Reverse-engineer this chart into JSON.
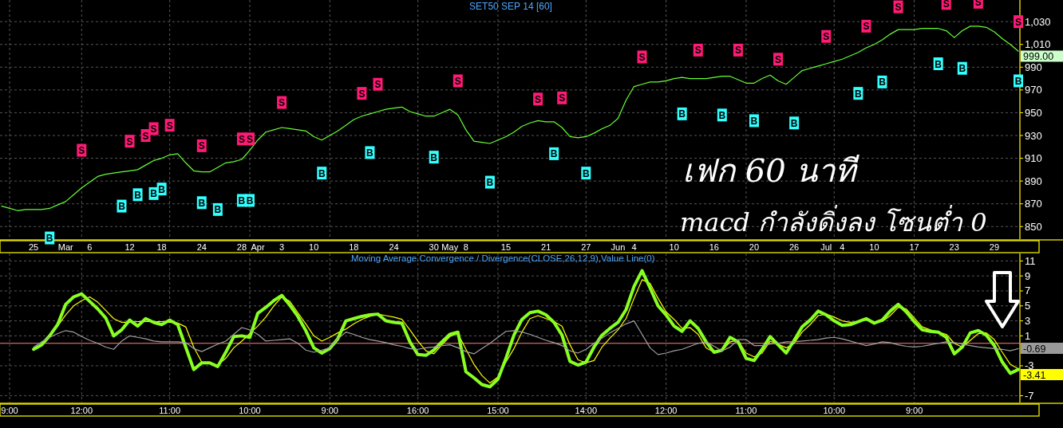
{
  "chart_data": [
    {
      "type": "line",
      "title": "SET50 SEP 14  [60]",
      "ylim": [
        839,
        1049
      ],
      "categories": [
        null,
        null,
        null,
        null,
        "25",
        null,
        null,
        null,
        "Mar",
        null,
        null,
        "6",
        null,
        null,
        null,
        null,
        "12",
        null,
        null,
        null,
        "18",
        null,
        null,
        null,
        null,
        "24",
        null,
        null,
        null,
        null,
        "28",
        null,
        "Apr",
        null,
        null,
        "3",
        null,
        null,
        null,
        "10",
        null,
        null,
        null,
        null,
        "18",
        null,
        null,
        null,
        null,
        "24",
        null,
        null,
        null,
        null,
        "30",
        null,
        "May",
        null,
        "8",
        null,
        null,
        null,
        null,
        "15",
        null,
        null,
        null,
        null,
        "21",
        null,
        null,
        null,
        null,
        "27",
        null,
        null,
        null,
        "Jun",
        null,
        "4",
        null,
        null,
        null,
        null,
        "10",
        null,
        null,
        null,
        null,
        "16",
        null,
        null,
        null,
        null,
        "20",
        null,
        null,
        null,
        null,
        "26",
        null,
        null,
        null,
        "Jul",
        null,
        "4",
        null,
        null,
        null,
        "10",
        null,
        null,
        null,
        null,
        "17",
        null,
        null,
        null,
        null,
        "23",
        null,
        null,
        null,
        null,
        "29",
        null,
        null,
        null
      ],
      "yticks": [
        850,
        870,
        890,
        910,
        930,
        950,
        970,
        990,
        {
          "value": 1010,
          "label": "1,010"
        },
        {
          "value": 1030,
          "label": "1,030"
        }
      ],
      "grid": true,
      "series": [
        {
          "color": "#66ff33",
          "values": [
            868,
            866,
            864,
            865,
            865,
            865,
            866,
            869,
            872,
            878,
            884,
            889,
            894,
            896,
            897,
            898,
            899,
            900,
            904,
            908,
            910,
            913,
            914,
            906,
            899,
            898,
            898,
            902,
            906,
            907,
            909,
            917,
            926,
            933,
            935,
            937,
            936,
            935,
            934,
            929,
            926,
            930,
            934,
            939,
            944,
            947,
            949,
            951,
            953,
            954,
            955,
            951,
            949,
            947,
            947,
            950,
            953,
            948,
            935,
            925,
            924,
            923,
            926,
            929,
            933,
            938,
            941,
            943,
            942,
            942,
            937,
            929,
            928,
            929,
            932,
            936,
            939,
            945,
            961,
            973,
            975,
            977,
            977,
            978,
            980,
            981,
            980,
            980,
            980,
            981,
            982,
            982,
            979,
            976,
            976,
            980,
            983,
            978,
            975,
            981,
            987,
            989,
            991,
            993,
            995,
            997,
            1000,
            1003,
            1007,
            1010,
            1014,
            1019,
            1023,
            1023,
            1023,
            1024,
            1024,
            1024,
            1022,
            1016,
            1022,
            1026,
            1026,
            1025,
            1021,
            1015,
            1010,
            1004
          ]
        },
        {
          "type": "scatter",
          "marker": "square",
          "color": "#ff1a75",
          "values": [
            null,
            null,
            null,
            null,
            null,
            null,
            null,
            null,
            null,
            null,
            917,
            null,
            null,
            null,
            null,
            null,
            925,
            null,
            930,
            936,
            null,
            939,
            null,
            null,
            null,
            921,
            null,
            null,
            null,
            null,
            927,
            927,
            null,
            null,
            null,
            959,
            null,
            null,
            null,
            null,
            null,
            null,
            null,
            null,
            null,
            967,
            null,
            975,
            null,
            null,
            null,
            null,
            null,
            null,
            null,
            null,
            null,
            978,
            null,
            null,
            null,
            null,
            null,
            null,
            null,
            null,
            null,
            962,
            null,
            null,
            963,
            null,
            null,
            null,
            null,
            null,
            null,
            null,
            null,
            null,
            999,
            null,
            null,
            null,
            null,
            null,
            null,
            1005,
            null,
            null,
            null,
            null,
            1005,
            null,
            null,
            null,
            null,
            997,
            null,
            null,
            null,
            null,
            null,
            1017,
            null,
            null,
            null,
            null,
            1026,
            null,
            null,
            null,
            1043,
            null,
            null,
            null,
            null,
            null,
            1046,
            null,
            null,
            null,
            1047,
            null,
            null,
            null,
            null,
            1030
          ],
          "value_labels": [
            null,
            null,
            null,
            null,
            null,
            null,
            null,
            null,
            null,
            null,
            "S",
            null,
            null,
            null,
            null,
            null,
            "S",
            null,
            "S",
            "S",
            null,
            "S",
            null,
            null,
            null,
            "S",
            null,
            null,
            null,
            null,
            "S",
            "S",
            null,
            null,
            null,
            "S",
            null,
            null,
            null,
            null,
            null,
            null,
            null,
            null,
            null,
            "S",
            null,
            "S",
            null,
            null,
            null,
            null,
            null,
            null,
            null,
            null,
            null,
            "S",
            null,
            null,
            null,
            null,
            null,
            null,
            null,
            null,
            null,
            "S",
            null,
            null,
            "S",
            null,
            null,
            null,
            null,
            null,
            null,
            null,
            null,
            null,
            "S",
            null,
            null,
            null,
            null,
            null,
            null,
            "S",
            null,
            null,
            null,
            null,
            "S",
            null,
            null,
            null,
            null,
            "S",
            null,
            null,
            null,
            null,
            null,
            "S",
            null,
            null,
            null,
            null,
            "S",
            null,
            null,
            null,
            "S",
            null,
            null,
            null,
            null,
            null,
            "S",
            null,
            null,
            null,
            "S",
            null,
            null,
            null,
            null,
            "S"
          ]
        },
        {
          "type": "scatter",
          "marker": "square",
          "color": "#33ffff",
          "values": [
            null,
            null,
            null,
            null,
            null,
            null,
            840,
            null,
            null,
            null,
            null,
            null,
            null,
            null,
            null,
            868,
            null,
            878,
            null,
            879,
            883,
            null,
            null,
            null,
            null,
            871,
            null,
            865,
            null,
            null,
            873,
            873,
            null,
            null,
            null,
            null,
            null,
            null,
            null,
            null,
            897,
            null,
            null,
            null,
            null,
            null,
            915,
            null,
            null,
            null,
            null,
            null,
            null,
            null,
            911,
            null,
            null,
            null,
            null,
            null,
            null,
            889,
            null,
            null,
            null,
            null,
            null,
            null,
            null,
            914,
            null,
            null,
            null,
            897,
            null,
            null,
            null,
            null,
            null,
            null,
            null,
            null,
            null,
            null,
            null,
            949,
            null,
            null,
            null,
            null,
            948,
            null,
            null,
            null,
            943,
            null,
            null,
            null,
            null,
            941,
            null,
            null,
            null,
            null,
            null,
            null,
            null,
            967,
            null,
            null,
            977,
            null,
            null,
            null,
            null,
            null,
            null,
            993,
            null,
            null,
            989,
            null,
            null,
            null,
            null,
            null,
            null,
            978
          ],
          "value_labels": [
            null,
            null,
            null,
            null,
            null,
            null,
            "B",
            null,
            null,
            null,
            null,
            null,
            null,
            null,
            null,
            "B",
            null,
            "B",
            null,
            "B",
            "B",
            null,
            null,
            null,
            null,
            "B",
            null,
            "B",
            null,
            null,
            "B",
            "B",
            null,
            null,
            null,
            null,
            null,
            null,
            null,
            null,
            "B",
            null,
            null,
            null,
            null,
            null,
            "B",
            null,
            null,
            null,
            null,
            null,
            null,
            null,
            "B",
            null,
            null,
            null,
            null,
            null,
            null,
            "B",
            null,
            null,
            null,
            null,
            null,
            null,
            null,
            "B",
            null,
            null,
            null,
            "B",
            null,
            null,
            null,
            null,
            null,
            null,
            null,
            null,
            null,
            null,
            null,
            "B",
            null,
            null,
            null,
            null,
            "B",
            null,
            null,
            null,
            "B",
            null,
            null,
            null,
            null,
            "B",
            null,
            null,
            null,
            null,
            null,
            null,
            null,
            "B",
            null,
            null,
            "B",
            null,
            null,
            null,
            null,
            null,
            null,
            "B",
            null,
            null,
            "B",
            null,
            null,
            null,
            null,
            null,
            null,
            "B"
          ]
        }
      ],
      "annotations": [
        "เฟก 60 นาที",
        "macd กำลังดิ่งลง โซนต่ำ 0",
        "999.00"
      ]
    },
    {
      "type": "line",
      "title": "Moving Average Convergence / Divergence(CLOSE,26,12,9),Value Line(0)",
      "ylim": [
        -7.9,
        12
      ],
      "categories": [
        null,
        "9:00",
        null,
        null,
        null,
        null,
        null,
        null,
        null,
        null,
        "12:00",
        null,
        null,
        null,
        null,
        null,
        null,
        null,
        null,
        null,
        null,
        "11:00",
        null,
        null,
        null,
        null,
        null,
        null,
        null,
        null,
        null,
        "10:00",
        null,
        null,
        null,
        null,
        null,
        null,
        null,
        null,
        null,
        "9:00",
        null,
        null,
        null,
        null,
        null,
        null,
        null,
        null,
        null,
        null,
        "16:00",
        null,
        null,
        null,
        null,
        null,
        null,
        null,
        null,
        null,
        "15:00",
        null,
        null,
        null,
        null,
        null,
        null,
        null,
        null,
        null,
        null,
        "14:00",
        null,
        null,
        null,
        null,
        null,
        null,
        null,
        null,
        null,
        "12:00",
        null,
        null,
        null,
        null,
        null,
        null,
        null,
        null,
        null,
        "11:00",
        null,
        null,
        null,
        null,
        null,
        null,
        null,
        null,
        null,
        null,
        "10:00",
        null,
        null,
        null,
        null,
        null,
        null,
        null,
        null,
        null,
        "9:00",
        null,
        null,
        null,
        null,
        null,
        null,
        null,
        null,
        null,
        null,
        null,
        null,
        null
      ],
      "yticks": [
        -7,
        -3,
        1,
        3,
        5,
        7,
        9,
        11
      ],
      "grid": true,
      "ref_lines": [
        {
          "axis": "y",
          "value": 0,
          "color": "#ff8080"
        }
      ],
      "series": [
        {
          "color": "#a0a0a0",
          "values": [
            null,
            null,
            null,
            null,
            -0.5,
            0.2,
            0.8,
            1.3,
            1.7,
            1.5,
            0.9,
            0.4,
            0.0,
            -0.5,
            -0.8,
            0.3,
            1.0,
            0.8,
            0.6,
            0.3,
            0.2,
            0.2,
            0.2,
            0.1,
            -0.7,
            -1.1,
            -0.6,
            -0.1,
            0.3,
            1.2,
            2.1,
            1.8,
            1.2,
            0.3,
            0.4,
            0.5,
            0.6,
            0.0,
            -0.9,
            -1.2,
            -0.9,
            -0.6,
            0.6,
            1.5,
            1.2,
            0.8,
            0.5,
            0.3,
            0.1,
            -0.2,
            -0.4,
            -0.7,
            -0.8,
            -0.6,
            -0.5,
            -0.3,
            -0.2,
            -0.6,
            -1.1,
            -1.4,
            -0.7,
            0.0,
            0.8,
            1.6,
            1.7,
            1.5,
            1.2,
            0.8,
            0.4,
            0.1,
            -0.3,
            -1.0,
            -1.3,
            -0.8,
            0.0,
            0.7,
            1.4,
            2.0,
            2.6,
            3.0,
            1.2,
            -0.6,
            -1.5,
            -1.3,
            -1.0,
            -0.8,
            -0.4,
            0.0,
            0.2,
            -0.4,
            -1.0,
            -0.5,
            0.5,
            0.5,
            -0.3,
            -0.3,
            -0.1,
            0.0,
            0.2,
            0.2,
            0.3,
            0.4,
            0.5,
            0.7,
            0.8,
            0.6,
            0.3,
            0.0,
            -0.3,
            -0.1,
            0.2,
            0.1,
            -0.2,
            -0.4,
            -0.5,
            -0.4,
            -0.2,
            0.0,
            0.2,
            0.1,
            -0.1,
            -0.3,
            -0.5,
            -0.6,
            -0.7,
            -0.8,
            -1.0,
            -0.7
          ]
        },
        {
          "color": "#ffff00",
          "values": [
            null,
            null,
            null,
            null,
            null,
            null,
            1.0,
            2.3,
            3.8,
            5.0,
            5.7,
            6.2,
            5.5,
            4.4,
            3.3,
            2.8,
            2.8,
            2.9,
            2.9,
            2.9,
            2.9,
            2.8,
            2.7,
            2.2,
            -0.5,
            -2.5,
            -2.7,
            -2.9,
            -2.0,
            -0.6,
            0.3,
            1.3,
            2.3,
            3.5,
            5.0,
            6.2,
            5.6,
            4.1,
            2.6,
            1.0,
            0.3,
            0.8,
            1.4,
            1.9,
            2.6,
            3.2,
            3.6,
            3.9,
            3.7,
            3.5,
            3.2,
            1.8,
            0.3,
            -1.0,
            -1.4,
            -0.2,
            0.9,
            1.3,
            -0.8,
            -2.8,
            -4.3,
            -5.3,
            -4.5,
            -2.5,
            -0.7,
            1.5,
            3.3,
            3.7,
            3.3,
            2.9,
            2.3,
            -0.2,
            -2.2,
            -2.6,
            -2.3,
            -0.5,
            0.7,
            1.8,
            3.3,
            6.0,
            8.5,
            8.0,
            6.0,
            4.2,
            3.2,
            2.0,
            2.1,
            1.2,
            -0.6,
            -1.2,
            -1.0,
            0.2,
            0.4,
            -1.3,
            -1.8,
            -1.3,
            0.3,
            -0.1,
            -0.6,
            0.0,
            1.5,
            2.5,
            3.7,
            3.9,
            3.5,
            3.0,
            2.8,
            2.9,
            3.1,
            2.9,
            2.9,
            3.7,
            4.8,
            4.6,
            3.4,
            2.2,
            1.8,
            1.5,
            1.2,
            0.0,
            -0.5,
            0.4,
            1.3,
            1.4,
            0.5,
            -1.2,
            -2.8,
            -3.4
          ]
        },
        {
          "color": "#88ff22",
          "values": [
            null,
            null,
            null,
            null,
            -0.8,
            -0.2,
            1.0,
            2.5,
            5.2,
            6.2,
            6.6,
            5.6,
            4.6,
            3.4,
            1.0,
            1.8,
            3.1,
            2.3,
            3.3,
            2.8,
            2.5,
            3.1,
            2.5,
            -0.5,
            -3.5,
            -2.6,
            -2.6,
            -3.1,
            -1.2,
            0.9,
            1.0,
            0.8,
            4.0,
            4.8,
            5.7,
            6.4,
            5.1,
            3.6,
            1.7,
            -0.6,
            -1.3,
            -0.7,
            0.6,
            3.0,
            3.3,
            3.6,
            3.8,
            3.9,
            3.0,
            2.8,
            2.7,
            0.2,
            -1.5,
            -1.6,
            -0.9,
            0.2,
            1.2,
            1.5,
            -3.8,
            -4.6,
            -5.5,
            -5.8,
            -4.8,
            -2.0,
            1.1,
            3.2,
            4.1,
            4.3,
            3.8,
            2.8,
            1.1,
            -2.4,
            -2.9,
            -2.5,
            -0.5,
            1.1,
            2.0,
            2.8,
            4.5,
            7.6,
            9.7,
            7.4,
            5.0,
            3.8,
            2.3,
            1.6,
            3.0,
            2.0,
            0.2,
            -1.2,
            -0.9,
            0.8,
            0.2,
            -2.0,
            -2.3,
            -0.8,
            0.9,
            -0.2,
            -1.3,
            0.4,
            2.2,
            3.1,
            4.3,
            3.8,
            3.0,
            2.4,
            2.5,
            2.9,
            3.3,
            2.7,
            3.1,
            4.3,
            5.2,
            4.2,
            2.9,
            1.8,
            1.6,
            1.5,
            0.8,
            -1.4,
            -0.5,
            1.4,
            1.7,
            1.1,
            -0.3,
            -2.5,
            -4.0,
            -3.5
          ]
        }
      ],
      "annotations": [
        "-0.69",
        "-3.41"
      ]
    }
  ]
}
